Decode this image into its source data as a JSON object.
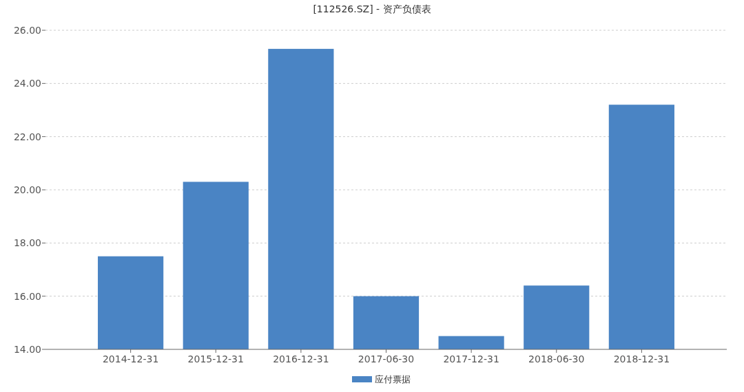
{
  "chart_data": {
    "type": "bar",
    "title": "[112526.SZ] - 资产负债表",
    "categories": [
      "2014-12-31",
      "2015-12-31",
      "2016-12-31",
      "2017-06-30",
      "2017-12-31",
      "2018-06-30",
      "2018-12-31"
    ],
    "series": [
      {
        "name": "应付票据",
        "color": "#4a84c4",
        "values": [
          17.5,
          20.3,
          25.3,
          16.0,
          14.5,
          16.4,
          23.2
        ]
      }
    ],
    "ylim": [
      14,
      26
    ],
    "yticks": [
      {
        "value": 14,
        "label": "14.00"
      },
      {
        "value": 16,
        "label": "16.00"
      },
      {
        "value": 18,
        "label": "18.00"
      },
      {
        "value": 20,
        "label": "20.00"
      },
      {
        "value": 22,
        "label": "22.00"
      },
      {
        "value": 24,
        "label": "24.00"
      },
      {
        "value": 26,
        "label": "26.00"
      }
    ],
    "grid": "y",
    "legend": "bottom"
  }
}
